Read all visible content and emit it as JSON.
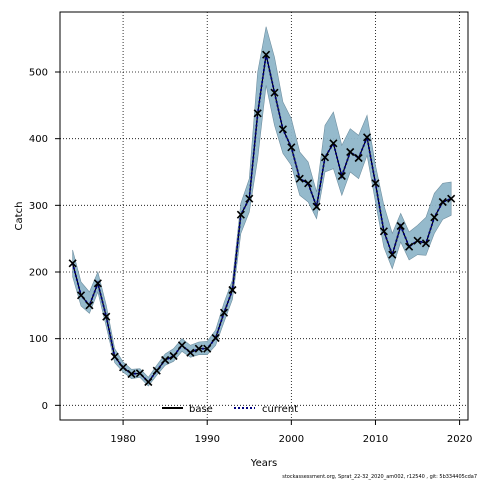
{
  "chart_data": {
    "type": "line",
    "xlabel": "Years",
    "ylabel": "Catch",
    "xlim": [
      1972.5,
      2021
    ],
    "ylim": [
      -22,
      590
    ],
    "x_ticks": [
      1980,
      1990,
      2000,
      2010,
      2020
    ],
    "y_ticks": [
      0,
      100,
      200,
      300,
      400,
      500
    ],
    "grid": true,
    "legend_position": "bottom-center",
    "x": [
      1974,
      1975,
      1976,
      1977,
      1978,
      1979,
      1980,
      1981,
      1982,
      1983,
      1984,
      1985,
      1986,
      1987,
      1988,
      1989,
      1990,
      1991,
      1992,
      1993,
      1994,
      1995,
      1996,
      1997,
      1998,
      1999,
      2000,
      2001,
      2002,
      2003,
      2004,
      2005,
      2006,
      2007,
      2008,
      2009,
      2010,
      2011,
      2012,
      2013,
      2014,
      2015,
      2016,
      2017,
      2018,
      2019
    ],
    "series": [
      {
        "name": "base",
        "style": "solid",
        "color": "#000000",
        "values": [
          213,
          165,
          150,
          183,
          133,
          73,
          57,
          47,
          48,
          35,
          52,
          68,
          74,
          90,
          79,
          85,
          85,
          101,
          139,
          173,
          286,
          310,
          438,
          526,
          469,
          414,
          387,
          340,
          333,
          298,
          372,
          393,
          344,
          380,
          371,
          402,
          333,
          261,
          226,
          269,
          238,
          247,
          243,
          282,
          305,
          310
        ]
      },
      {
        "name": "current",
        "style": "dotted",
        "color": "#000080",
        "values": [
          213,
          165,
          150,
          183,
          133,
          73,
          57,
          47,
          48,
          35,
          52,
          68,
          74,
          90,
          79,
          85,
          85,
          101,
          139,
          173,
          286,
          310,
          438,
          526,
          469,
          414,
          387,
          340,
          333,
          298,
          372,
          393,
          344,
          380,
          371,
          402,
          333,
          261,
          226,
          269,
          238,
          247,
          243,
          282,
          305,
          310
        ]
      }
    ],
    "band": {
      "color": "#8fb6c9",
      "upper": [
        233,
        185,
        170,
        200,
        150,
        85,
        65,
        54,
        55,
        42,
        60,
        77,
        85,
        100,
        90,
        95,
        96,
        113,
        154,
        188,
        303,
        340,
        500,
        568,
        522,
        455,
        430,
        380,
        365,
        320,
        420,
        440,
        390,
        415,
        405,
        435,
        360,
        300,
        258,
        288,
        260,
        270,
        282,
        318,
        333,
        335
      ],
      "lower": [
        193,
        149,
        138,
        170,
        118,
        64,
        50,
        40,
        42,
        29,
        45,
        60,
        66,
        81,
        72,
        76,
        76,
        90,
        125,
        159,
        258,
        290,
        370,
        480,
        420,
        378,
        360,
        315,
        305,
        280,
        350,
        355,
        315,
        350,
        340,
        375,
        305,
        237,
        205,
        245,
        218,
        226,
        225,
        258,
        279,
        285
      ]
    },
    "markers": {
      "symbol": "x",
      "x": [
        1974,
        1975,
        1976,
        1977,
        1978,
        1979,
        1980,
        1981,
        1982,
        1983,
        1984,
        1985,
        1986,
        1987,
        1988,
        1989,
        1990,
        1991,
        1992,
        1993,
        1994,
        1995,
        1996,
        1997,
        1998,
        1999,
        2000,
        2001,
        2002,
        2003,
        2004,
        2005,
        2006,
        2007,
        2008,
        2009,
        2010,
        2011,
        2012,
        2013,
        2014,
        2015,
        2016,
        2017,
        2018,
        2019
      ],
      "values": [
        213,
        165,
        150,
        183,
        133,
        73,
        57,
        47,
        48,
        35,
        52,
        68,
        74,
        90,
        79,
        85,
        85,
        101,
        139,
        173,
        286,
        310,
        438,
        526,
        469,
        414,
        387,
        340,
        333,
        298,
        372,
        393,
        344,
        380,
        371,
        402,
        333,
        261,
        226,
        269,
        238,
        247,
        243,
        282,
        305,
        310
      ]
    },
    "footnote": "stockassessment.org, Sprat_22-32_2020_am002, r12540 , git: 5b334405cda7"
  }
}
